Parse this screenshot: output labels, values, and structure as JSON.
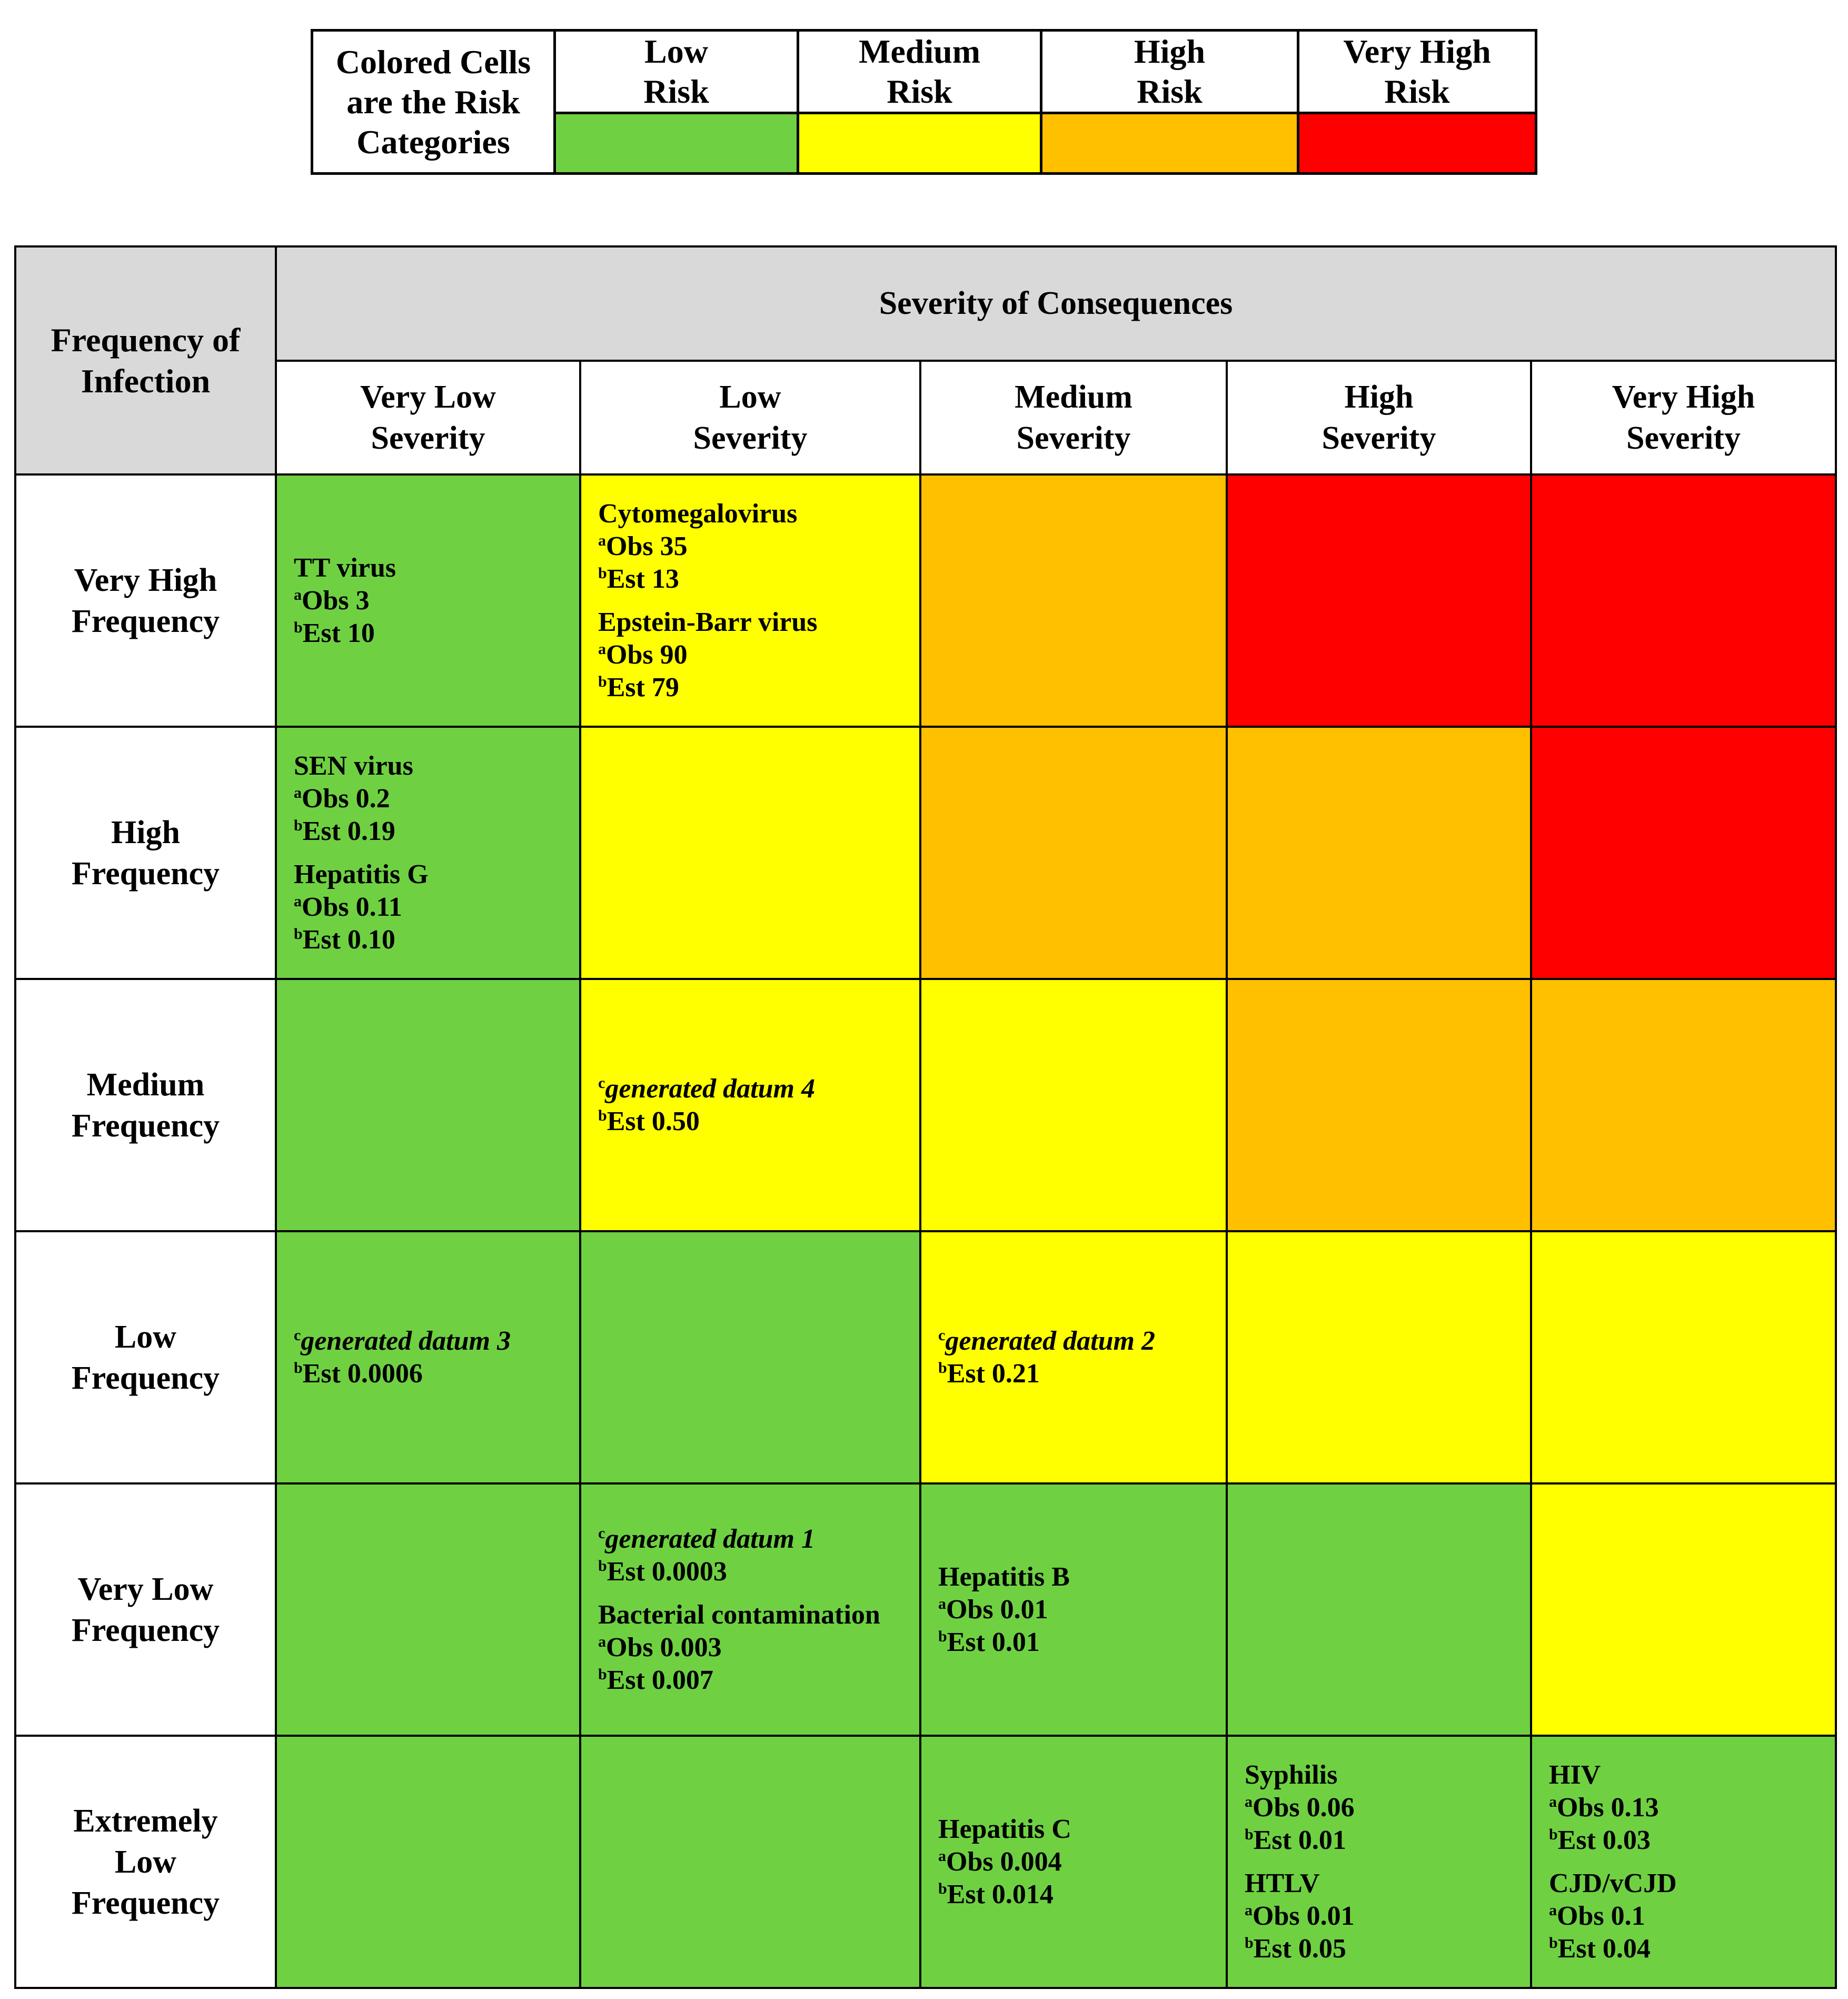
{
  "legend": {
    "caption": [
      "Colored Cells",
      "are the Risk",
      "Categories"
    ],
    "categories": [
      {
        "label": [
          "Low",
          "Risk"
        ],
        "color": "#6fd142"
      },
      {
        "label": [
          "Medium",
          "Risk"
        ],
        "color": "#ffff00"
      },
      {
        "label": [
          "High",
          "Risk"
        ],
        "color": "#ffc000"
      },
      {
        "label": [
          "Very High",
          "Risk"
        ],
        "color": "#ff0000"
      }
    ]
  },
  "matrix": {
    "corner_label": [
      "Frequency of",
      "Infection"
    ],
    "severity_title": "Severity of Consequences",
    "columns": [
      [
        "Very Low",
        "Severity"
      ],
      [
        "Low",
        "Severity"
      ],
      [
        "Medium",
        "Severity"
      ],
      [
        "High",
        "Severity"
      ],
      [
        "Very High",
        "Severity"
      ]
    ],
    "rows": [
      {
        "label": [
          "Very High",
          "Frequency"
        ],
        "cells": [
          {
            "risk": "green",
            "entries": [
              {
                "name": "TT virus",
                "obs": "Obs 3",
                "est": "Est 10"
              }
            ]
          },
          {
            "risk": "yellow",
            "entries": [
              {
                "name": "Cytomegalovirus",
                "obs": "Obs 35",
                "est": "Est 13"
              },
              {
                "name": "Epstein-Barr virus",
                "obs": "Obs 90",
                "est": "Est 79"
              }
            ]
          },
          {
            "risk": "orange",
            "entries": []
          },
          {
            "risk": "red",
            "entries": []
          },
          {
            "risk": "red",
            "entries": []
          }
        ]
      },
      {
        "label": [
          "High",
          "Frequency"
        ],
        "cells": [
          {
            "risk": "green",
            "entries": [
              {
                "name": "SEN virus",
                "obs": "Obs 0.2",
                "est": "Est 0.19"
              },
              {
                "name": "Hepatitis G",
                "obs": "Obs 0.11",
                "est": "Est 0.10"
              }
            ]
          },
          {
            "risk": "yellow",
            "entries": []
          },
          {
            "risk": "orange",
            "entries": []
          },
          {
            "risk": "orange",
            "entries": []
          },
          {
            "risk": "red",
            "entries": []
          }
        ]
      },
      {
        "label": [
          "Medium",
          "Frequency"
        ],
        "cells": [
          {
            "risk": "green",
            "entries": []
          },
          {
            "risk": "yellow",
            "entries": [
              {
                "generated": "generated datum 4",
                "est": "Est 0.50"
              }
            ]
          },
          {
            "risk": "yellow",
            "entries": []
          },
          {
            "risk": "orange",
            "entries": []
          },
          {
            "risk": "orange",
            "entries": []
          }
        ]
      },
      {
        "label": [
          "Low",
          "Frequency"
        ],
        "cells": [
          {
            "risk": "green",
            "entries": [
              {
                "generated": "generated datum 3",
                "est": "Est 0.0006"
              }
            ]
          },
          {
            "risk": "green",
            "entries": []
          },
          {
            "risk": "yellow",
            "entries": [
              {
                "generated": "generated datum 2",
                "est": "Est 0.21"
              }
            ]
          },
          {
            "risk": "yellow",
            "entries": []
          },
          {
            "risk": "yellow",
            "entries": []
          }
        ]
      },
      {
        "label": [
          "Very Low",
          "Frequency"
        ],
        "cells": [
          {
            "risk": "green",
            "entries": []
          },
          {
            "risk": "green",
            "entries": [
              {
                "generated": "generated datum 1",
                "est": "Est 0.0003"
              },
              {
                "name": "Bacterial contamination",
                "obs": "Obs 0.003",
                "est": "Est 0.007"
              }
            ]
          },
          {
            "risk": "green",
            "entries": [
              {
                "name": "Hepatitis B",
                "obs": "Obs 0.01",
                "est": "Est 0.01"
              }
            ]
          },
          {
            "risk": "green",
            "entries": []
          },
          {
            "risk": "yellow",
            "entries": []
          }
        ]
      },
      {
        "label": [
          "Extremely",
          "Low",
          "Frequency"
        ],
        "cells": [
          {
            "risk": "green",
            "entries": []
          },
          {
            "risk": "green",
            "entries": []
          },
          {
            "risk": "green",
            "entries": [
              {
                "name": "Hepatitis C",
                "obs": "Obs 0.004",
                "est": "Est 0.014"
              }
            ]
          },
          {
            "risk": "green",
            "entries": [
              {
                "name": "Syphilis",
                "obs": "Obs 0.06",
                "est": "Est 0.01"
              },
              {
                "name": "HTLV",
                "obs": "Obs 0.01",
                "est": "Est 0.05"
              }
            ]
          },
          {
            "risk": "green",
            "entries": [
              {
                "name": "HIV",
                "obs": "Obs 0.13",
                "est": "Est 0.03"
              },
              {
                "name": "CJD/vCJD",
                "obs": "Obs 0.1",
                "est": "Est 0.04"
              }
            ]
          }
        ]
      }
    ],
    "footnote_marks": {
      "obs": "a",
      "est": "b",
      "generated": "c"
    }
  }
}
